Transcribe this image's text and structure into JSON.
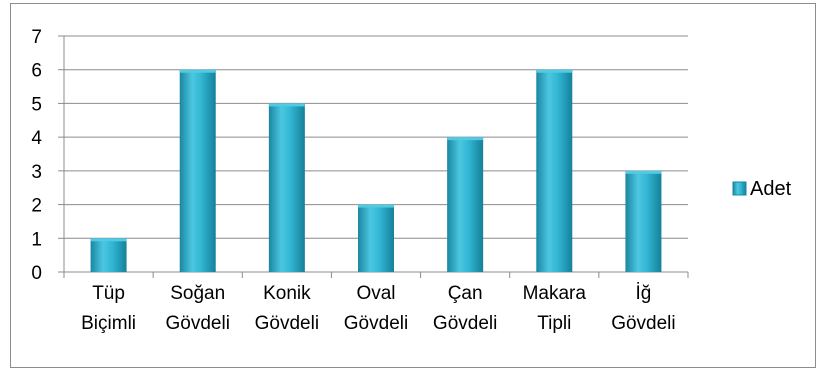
{
  "chart_data": {
    "type": "bar",
    "categories": [
      [
        "Tüp",
        "Biçimli"
      ],
      [
        "Soğan",
        "Gövdeli"
      ],
      [
        "Konik",
        "Gövdeli"
      ],
      [
        "Oval",
        "Gövdeli"
      ],
      [
        "Çan",
        "Gövdeli"
      ],
      [
        "Makara",
        "Tipli"
      ],
      [
        "İğ",
        "Gövdeli"
      ]
    ],
    "series": [
      {
        "name": "Adet",
        "values": [
          1,
          6,
          5,
          2,
          4,
          6,
          3
        ]
      }
    ],
    "ylim": [
      0,
      7
    ],
    "yticks": [
      0,
      1,
      2,
      3,
      4,
      5,
      6,
      7
    ],
    "grid": true,
    "legend_position": "right",
    "colors": {
      "bar_light": "#6fd6ec",
      "bar_mid": "#31b6d3",
      "bar_dark": "#1a87a1",
      "bar_top": "#53c9e2",
      "gridline": "#8c8c8c",
      "axis": "#8c8c8c"
    }
  }
}
